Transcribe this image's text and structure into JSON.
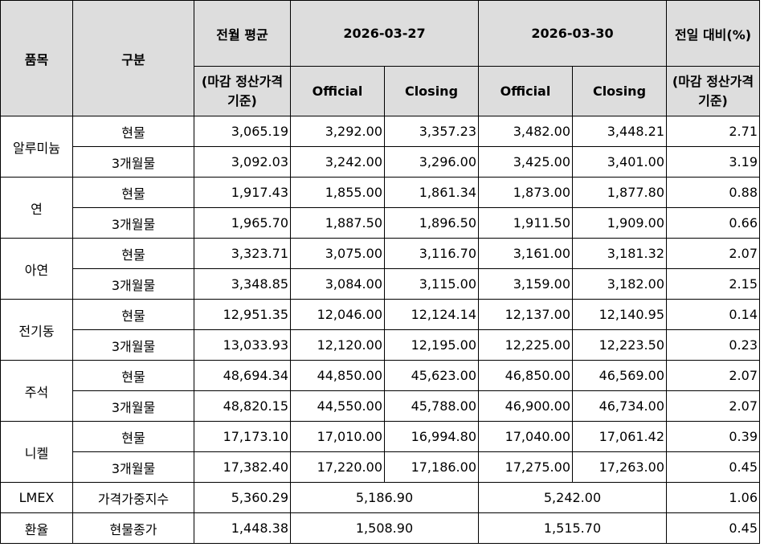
{
  "header": {
    "item": "품목",
    "category": "구분",
    "prev_month_avg": "전월 평균",
    "prev_month_avg_note": "(마감 정산가격 기준)",
    "date1": "2026-03-27",
    "date2": "2026-03-30",
    "change": "전일 대비(%)",
    "change_note": "(마감 정산가격 기준)",
    "official": "Official",
    "closing": "Closing"
  },
  "groups": [
    {
      "name": "알루미늄",
      "rows": [
        {
          "type": "현물",
          "avg": "3,065.19",
          "d1_official": "3,292.00",
          "d1_closing": "3,357.23",
          "d2_official": "3,482.00",
          "d2_closing": "3,448.21",
          "change": "2.71"
        },
        {
          "type": "3개월물",
          "avg": "3,092.03",
          "d1_official": "3,242.00",
          "d1_closing": "3,296.00",
          "d2_official": "3,425.00",
          "d2_closing": "3,401.00",
          "change": "3.19"
        }
      ]
    },
    {
      "name": "연",
      "rows": [
        {
          "type": "현물",
          "avg": "1,917.43",
          "d1_official": "1,855.00",
          "d1_closing": "1,861.34",
          "d2_official": "1,873.00",
          "d2_closing": "1,877.80",
          "change": "0.88"
        },
        {
          "type": "3개월물",
          "avg": "1,965.70",
          "d1_official": "1,887.50",
          "d1_closing": "1,896.50",
          "d2_official": "1,911.50",
          "d2_closing": "1,909.00",
          "change": "0.66"
        }
      ]
    },
    {
      "name": "아연",
      "rows": [
        {
          "type": "현물",
          "avg": "3,323.71",
          "d1_official": "3,075.00",
          "d1_closing": "3,116.70",
          "d2_official": "3,161.00",
          "d2_closing": "3,181.32",
          "change": "2.07"
        },
        {
          "type": "3개월물",
          "avg": "3,348.85",
          "d1_official": "3,084.00",
          "d1_closing": "3,115.00",
          "d2_official": "3,159.00",
          "d2_closing": "3,182.00",
          "change": "2.15"
        }
      ]
    },
    {
      "name": "전기동",
      "rows": [
        {
          "type": "현물",
          "avg": "12,951.35",
          "d1_official": "12,046.00",
          "d1_closing": "12,124.14",
          "d2_official": "12,137.00",
          "d2_closing": "12,140.95",
          "change": "0.14"
        },
        {
          "type": "3개월물",
          "avg": "13,033.93",
          "d1_official": "12,120.00",
          "d1_closing": "12,195.00",
          "d2_official": "12,225.00",
          "d2_closing": "12,223.50",
          "change": "0.23"
        }
      ]
    },
    {
      "name": "주석",
      "rows": [
        {
          "type": "현물",
          "avg": "48,694.34",
          "d1_official": "44,850.00",
          "d1_closing": "45,623.00",
          "d2_official": "46,850.00",
          "d2_closing": "46,569.00",
          "change": "2.07"
        },
        {
          "type": "3개월물",
          "avg": "48,820.15",
          "d1_official": "44,550.00",
          "d1_closing": "45,788.00",
          "d2_official": "46,900.00",
          "d2_closing": "46,734.00",
          "change": "2.07"
        }
      ]
    },
    {
      "name": "니켈",
      "rows": [
        {
          "type": "현물",
          "avg": "17,173.10",
          "d1_official": "17,010.00",
          "d1_closing": "16,994.80",
          "d2_official": "17,040.00",
          "d2_closing": "17,061.42",
          "change": "0.39"
        },
        {
          "type": "3개월물",
          "avg": "17,382.40",
          "d1_official": "17,220.00",
          "d1_closing": "17,186.00",
          "d2_official": "17,275.00",
          "d2_closing": "17,263.00",
          "change": "0.45"
        }
      ]
    }
  ],
  "lmex": {
    "name": "LMEX",
    "type": "가격가중지수",
    "avg": "5,360.29",
    "d1": "5,186.90",
    "d2": "5,242.00",
    "change": "1.06"
  },
  "fx": {
    "name": "환율",
    "type": "현물종가",
    "avg": "1,448.38",
    "d1": "1,508.90",
    "d2": "1,515.70",
    "change": "0.45"
  },
  "colors": {
    "header_bg": "#dddddd",
    "border": "#000000"
  }
}
